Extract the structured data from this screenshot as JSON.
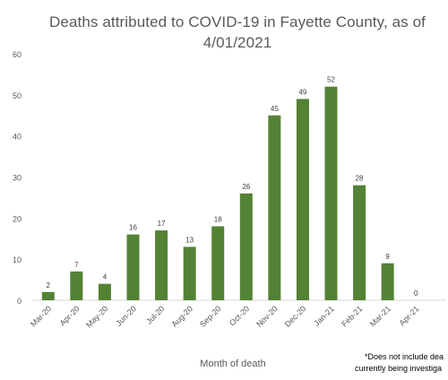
{
  "chart_data": {
    "type": "bar",
    "title_lines": [
      "Deaths attributed to COVID-19 in Fayette County, as of",
      "4/01/2021"
    ],
    "xlabel": "Month of death",
    "ylabel": "",
    "ylim": [
      0,
      60
    ],
    "yticks": [
      0,
      10,
      20,
      30,
      40,
      50,
      60
    ],
    "grid": false,
    "categories": [
      "Mar-20",
      "Apr-20",
      "May-20",
      "Jun-20",
      "Jul-20",
      "Aug-20",
      "Sep-20",
      "Oct-20",
      "Nov-20",
      "Dec-20",
      "Jan-21",
      "Feb-21",
      "Mar-21",
      "Apr-21"
    ],
    "values": [
      2,
      7,
      4,
      16,
      17,
      13,
      18,
      26,
      45,
      49,
      52,
      28,
      9,
      0
    ],
    "bar_color": "#548235",
    "footnote_lines": [
      "*Does not include dea",
      "currently being investiga"
    ]
  }
}
